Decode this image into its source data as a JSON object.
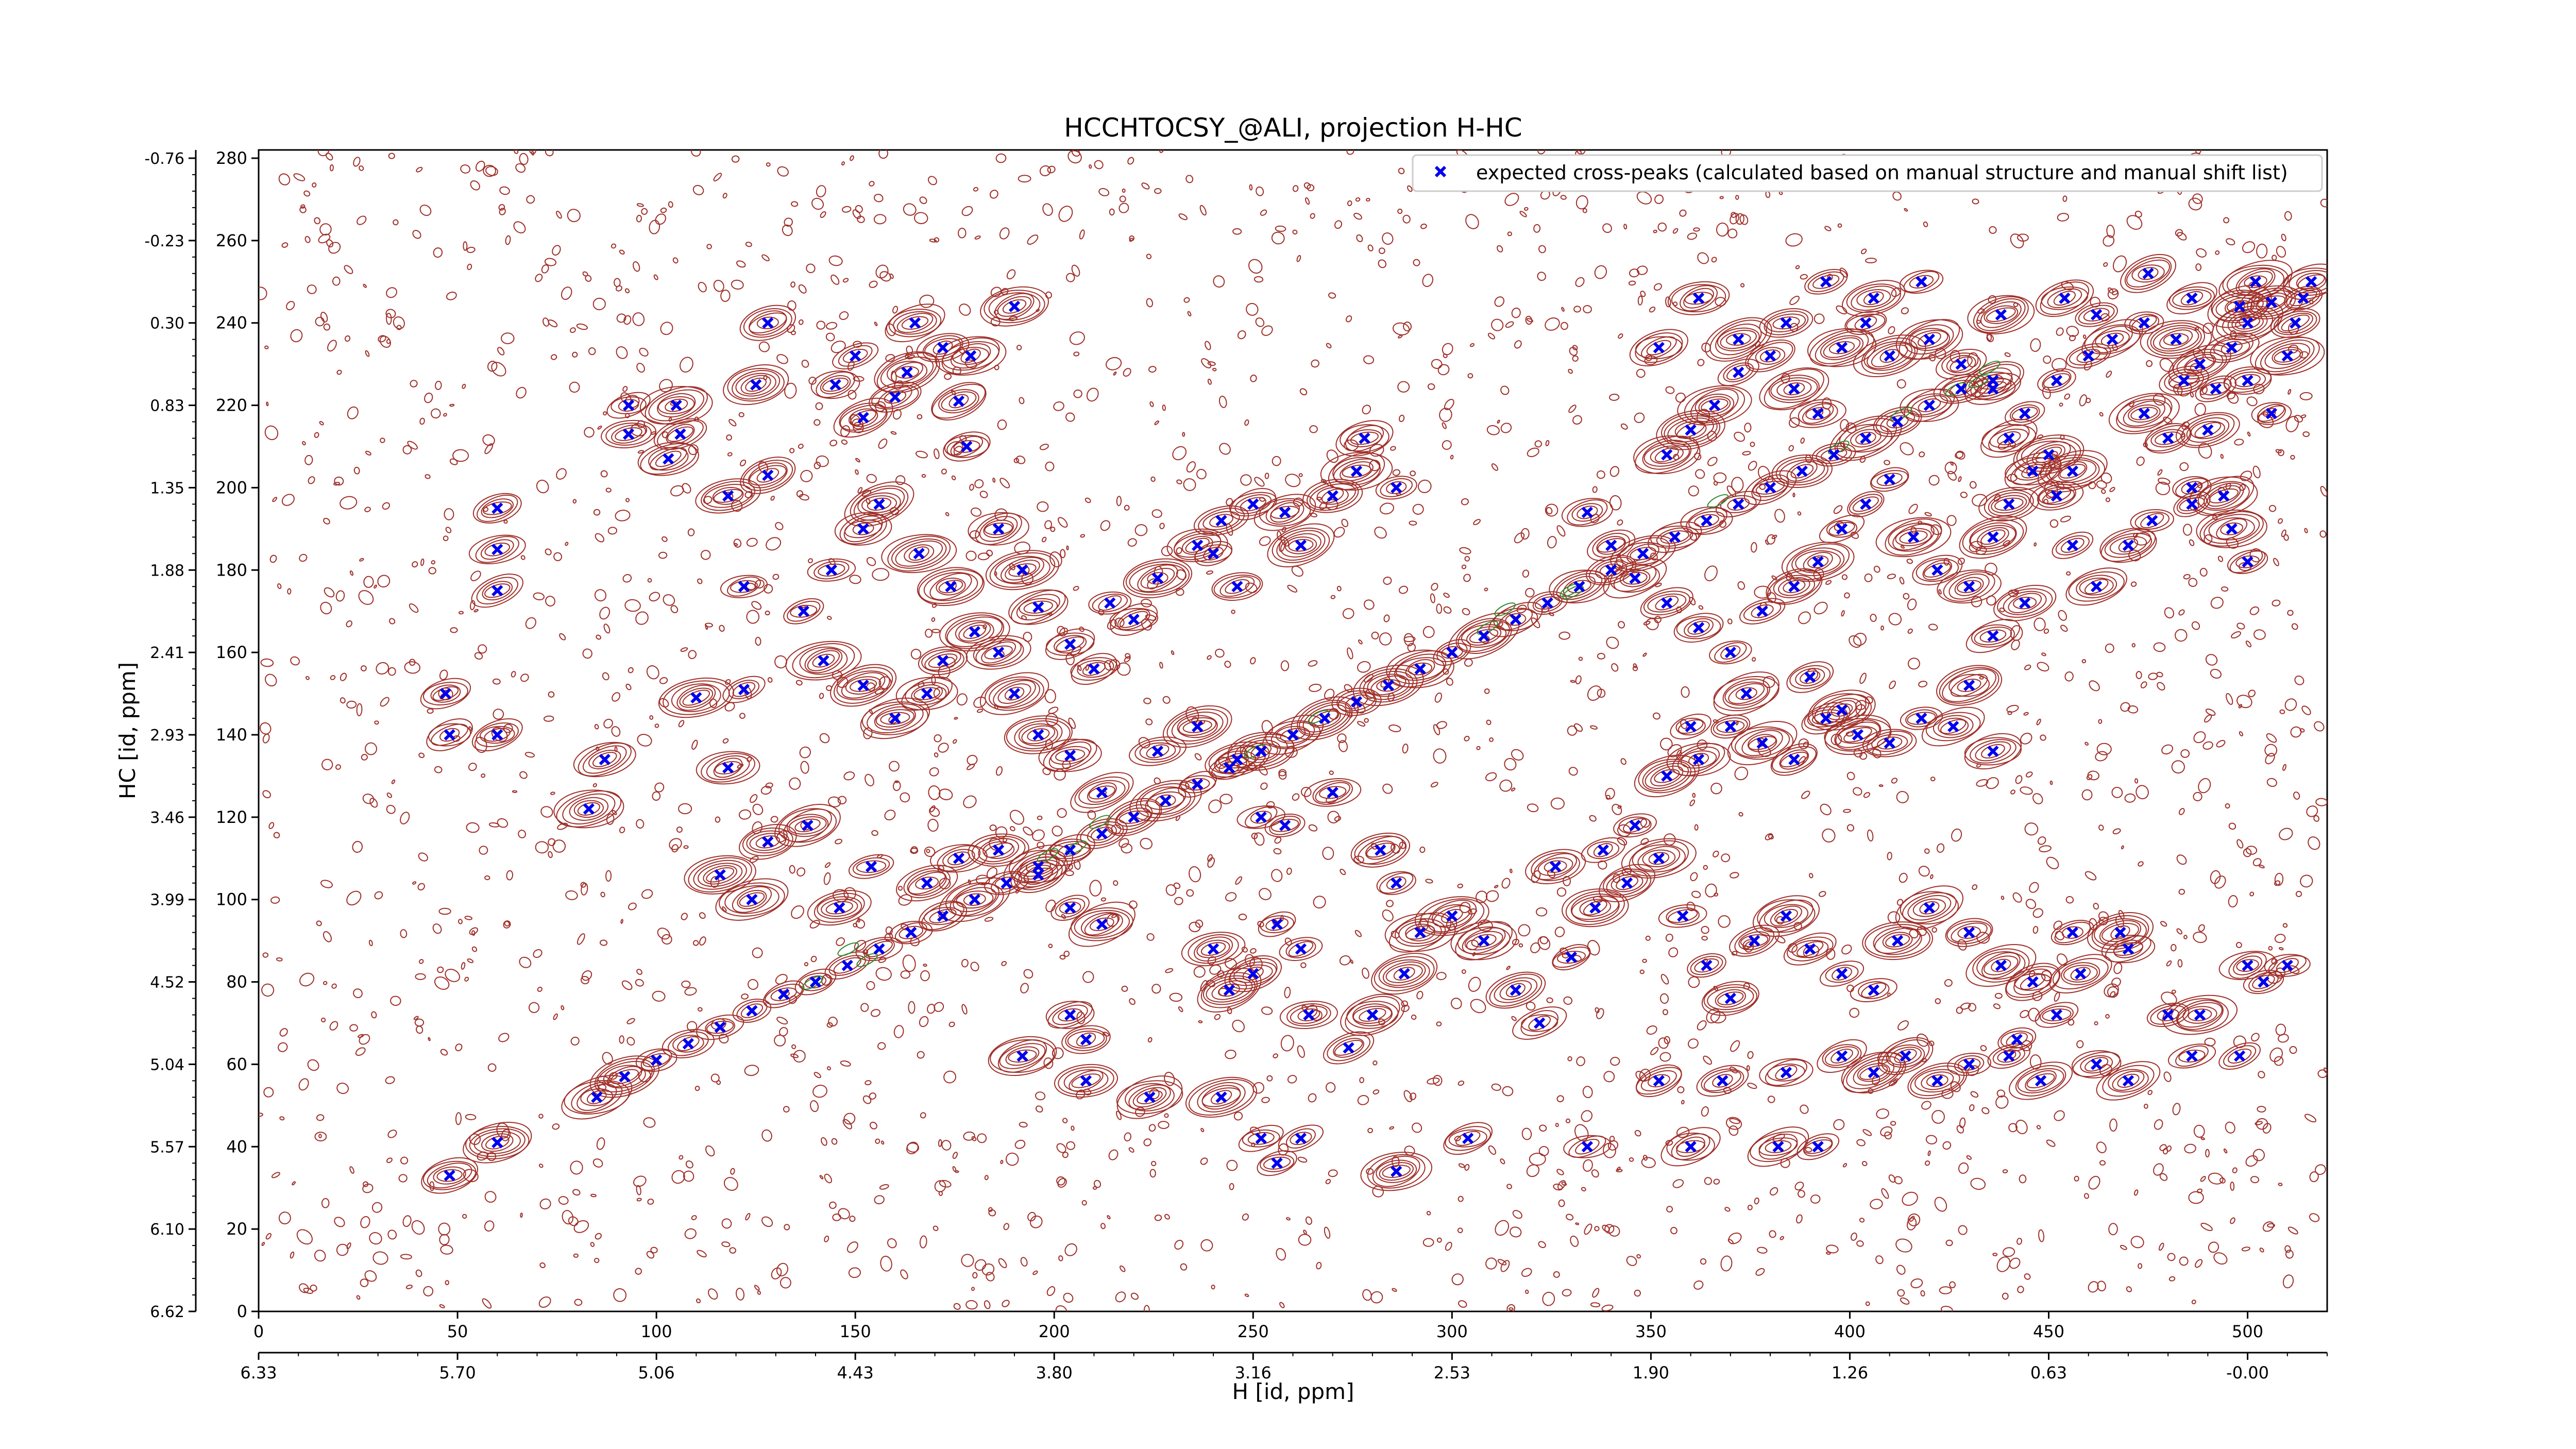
{
  "chart_data": {
    "type": "scatter",
    "title": "HCCHTOCSY_@ALI, projection H-HC",
    "xlabel": "H [id, ppm]",
    "ylabel": "HC [id, ppm]",
    "xlim": [
      0,
      520
    ],
    "ylim": [
      0,
      282
    ],
    "x_ticks": [
      0,
      50,
      100,
      150,
      200,
      250,
      300,
      350,
      400,
      450,
      500
    ],
    "y_ticks": [
      0,
      20,
      40,
      60,
      80,
      100,
      120,
      140,
      160,
      180,
      200,
      220,
      240,
      260,
      280
    ],
    "x_ppm_ticks": [
      "6.33",
      "5.70",
      "5.06",
      "4.43",
      "3.80",
      "3.16",
      "2.53",
      "1.90",
      "1.26",
      "0.63",
      "-0.00"
    ],
    "y_ppm_ticks": [
      "6.62",
      "6.10",
      "5.57",
      "5.04",
      "4.52",
      "3.99",
      "3.46",
      "2.93",
      "2.41",
      "1.88",
      "1.35",
      "0.83",
      "0.30",
      "-0.23",
      "-0.76"
    ],
    "grid": false,
    "legend_position": "top-right",
    "colors": {
      "contour": "#a0302a",
      "negative_contour": "#2e8b2e",
      "marker": "#0000ee"
    },
    "series": [
      {
        "name": "expected cross-peaks (calculated based on manual structure and manual shift list)",
        "marker": "x",
        "points": [
          [
            85,
            52
          ],
          [
            92,
            57
          ],
          [
            100,
            61
          ],
          [
            108,
            65
          ],
          [
            116,
            69
          ],
          [
            124,
            73
          ],
          [
            132,
            77
          ],
          [
            140,
            80
          ],
          [
            148,
            84
          ],
          [
            156,
            88
          ],
          [
            164,
            92
          ],
          [
            172,
            96
          ],
          [
            180,
            100
          ],
          [
            188,
            104
          ],
          [
            196,
            108
          ],
          [
            204,
            112
          ],
          [
            212,
            116
          ],
          [
            220,
            120
          ],
          [
            228,
            124
          ],
          [
            236,
            128
          ],
          [
            244,
            132
          ],
          [
            252,
            136
          ],
          [
            260,
            140
          ],
          [
            268,
            144
          ],
          [
            276,
            148
          ],
          [
            284,
            152
          ],
          [
            292,
            156
          ],
          [
            300,
            160
          ],
          [
            308,
            164
          ],
          [
            316,
            168
          ],
          [
            324,
            172
          ],
          [
            332,
            176
          ],
          [
            340,
            180
          ],
          [
            348,
            184
          ],
          [
            356,
            188
          ],
          [
            364,
            192
          ],
          [
            372,
            196
          ],
          [
            380,
            200
          ],
          [
            388,
            204
          ],
          [
            396,
            208
          ],
          [
            404,
            212
          ],
          [
            412,
            216
          ],
          [
            420,
            220
          ],
          [
            428,
            224
          ],
          [
            436,
            226
          ],
          [
            48,
            33
          ],
          [
            60,
            41
          ],
          [
            60,
            140
          ],
          [
            60,
            175
          ],
          [
            60,
            185
          ],
          [
            60,
            195
          ],
          [
            83,
            122
          ],
          [
            87,
            134
          ],
          [
            48,
            140
          ],
          [
            47,
            150
          ],
          [
            93,
            213
          ],
          [
            93,
            220
          ],
          [
            103,
            207
          ],
          [
            106,
            213
          ],
          [
            105,
            220
          ],
          [
            118,
            198
          ],
          [
            125,
            225
          ],
          [
            128,
            240
          ],
          [
            128,
            203
          ],
          [
            122,
            176
          ],
          [
            122,
            151
          ],
          [
            110,
            149
          ],
          [
            116,
            106
          ],
          [
            118,
            132
          ],
          [
            145,
            225
          ],
          [
            150,
            232
          ],
          [
            152,
            217
          ],
          [
            160,
            222
          ],
          [
            163,
            228
          ],
          [
            165,
            240
          ],
          [
            172,
            234
          ],
          [
            179,
            232
          ],
          [
            176,
            221
          ],
          [
            178,
            210
          ],
          [
            190,
            244
          ],
          [
            186,
            190
          ],
          [
            192,
            180
          ],
          [
            196,
            171
          ],
          [
            180,
            165
          ],
          [
            172,
            158
          ],
          [
            168,
            150
          ],
          [
            160,
            144
          ],
          [
            152,
            152
          ],
          [
            142,
            158
          ],
          [
            137,
            170
          ],
          [
            144,
            180
          ],
          [
            152,
            190
          ],
          [
            156,
            196
          ],
          [
            166,
            184
          ],
          [
            174,
            176
          ],
          [
            186,
            160
          ],
          [
            190,
            150
          ],
          [
            196,
            140
          ],
          [
            204,
            135
          ],
          [
            204,
            162
          ],
          [
            210,
            156
          ],
          [
            214,
            172
          ],
          [
            220,
            168
          ],
          [
            226,
            178
          ],
          [
            236,
            186
          ],
          [
            242,
            192
          ],
          [
            250,
            196
          ],
          [
            258,
            194
          ],
          [
            262,
            186
          ],
          [
            270,
            198
          ],
          [
            276,
            204
          ],
          [
            278,
            212
          ],
          [
            286,
            200
          ],
          [
            240,
            184
          ],
          [
            246,
            176
          ],
          [
            212,
            126
          ],
          [
            226,
            136
          ],
          [
            236,
            142
          ],
          [
            246,
            134
          ],
          [
            252,
            120
          ],
          [
            258,
            118
          ],
          [
            270,
            126
          ],
          [
            282,
            112
          ],
          [
            286,
            104
          ],
          [
            196,
            106
          ],
          [
            204,
            98
          ],
          [
            212,
            94
          ],
          [
            186,
            112
          ],
          [
            176,
            110
          ],
          [
            168,
            104
          ],
          [
            154,
            108
          ],
          [
            146,
            98
          ],
          [
            138,
            118
          ],
          [
            128,
            114
          ],
          [
            124,
            100
          ],
          [
            204,
            72
          ],
          [
            208,
            66
          ],
          [
            192,
            62
          ],
          [
            240,
            88
          ],
          [
            244,
            78
          ],
          [
            250,
            82
          ],
          [
            256,
            94
          ],
          [
            262,
            88
          ],
          [
            264,
            72
          ],
          [
            274,
            64
          ],
          [
            280,
            72
          ],
          [
            288,
            82
          ],
          [
            292,
            92
          ],
          [
            300,
            96
          ],
          [
            308,
            90
          ],
          [
            316,
            78
          ],
          [
            322,
            70
          ],
          [
            330,
            86
          ],
          [
            336,
            98
          ],
          [
            344,
            104
          ],
          [
            352,
            110
          ],
          [
            358,
            96
          ],
          [
            364,
            84
          ],
          [
            370,
            76
          ],
          [
            376,
            90
          ],
          [
            384,
            96
          ],
          [
            390,
            88
          ],
          [
            398,
            82
          ],
          [
            406,
            78
          ],
          [
            412,
            90
          ],
          [
            420,
            98
          ],
          [
            430,
            92
          ],
          [
            438,
            84
          ],
          [
            446,
            80
          ],
          [
            456,
            92
          ],
          [
            468,
            92
          ],
          [
            480,
            72
          ],
          [
            488,
            72
          ],
          [
            500,
            84
          ],
          [
            346,
            118
          ],
          [
            338,
            112
          ],
          [
            326,
            108
          ],
          [
            354,
            130
          ],
          [
            362,
            134
          ],
          [
            370,
            142
          ],
          [
            378,
            138
          ],
          [
            386,
            134
          ],
          [
            394,
            144
          ],
          [
            402,
            140
          ],
          [
            410,
            138
          ],
          [
            418,
            144
          ],
          [
            426,
            142
          ],
          [
            436,
            136
          ],
          [
            390,
            154
          ],
          [
            398,
            146
          ],
          [
            374,
            150
          ],
          [
            360,
            142
          ],
          [
            430,
            152
          ],
          [
            436,
            164
          ],
          [
            444,
            172
          ],
          [
            334,
            194
          ],
          [
            340,
            186
          ],
          [
            346,
            178
          ],
          [
            354,
            172
          ],
          [
            362,
            166
          ],
          [
            370,
            160
          ],
          [
            378,
            170
          ],
          [
            386,
            176
          ],
          [
            392,
            182
          ],
          [
            398,
            190
          ],
          [
            404,
            196
          ],
          [
            410,
            202
          ],
          [
            416,
            188
          ],
          [
            422,
            180
          ],
          [
            430,
            176
          ],
          [
            436,
            188
          ],
          [
            440,
            196
          ],
          [
            446,
            204
          ],
          [
            452,
            198
          ],
          [
            456,
            186
          ],
          [
            462,
            176
          ],
          [
            470,
            186
          ],
          [
            476,
            192
          ],
          [
            486,
            200
          ],
          [
            494,
            198
          ],
          [
            500,
            182
          ],
          [
            354,
            208
          ],
          [
            360,
            214
          ],
          [
            366,
            220
          ],
          [
            372,
            228
          ],
          [
            380,
            232
          ],
          [
            386,
            224
          ],
          [
            392,
            218
          ],
          [
            398,
            234
          ],
          [
            404,
            240
          ],
          [
            410,
            232
          ],
          [
            420,
            236
          ],
          [
            428,
            230
          ],
          [
            436,
            224
          ],
          [
            444,
            218
          ],
          [
            452,
            226
          ],
          [
            460,
            232
          ],
          [
            466,
            236
          ],
          [
            474,
            240
          ],
          [
            482,
            236
          ],
          [
            488,
            230
          ],
          [
            492,
            224
          ],
          [
            500,
            226
          ],
          [
            450,
            208
          ],
          [
            456,
            204
          ],
          [
            440,
            212
          ],
          [
            474,
            218
          ],
          [
            484,
            226
          ],
          [
            496,
            234
          ],
          [
            500,
            240
          ],
          [
            506,
            245
          ],
          [
            490,
            214
          ],
          [
            496,
            190
          ],
          [
            352,
            234
          ],
          [
            362,
            246
          ],
          [
            372,
            236
          ],
          [
            384,
            240
          ],
          [
            394,
            250
          ],
          [
            406,
            246
          ],
          [
            418,
            250
          ],
          [
            438,
            242
          ],
          [
            454,
            246
          ],
          [
            462,
            242
          ],
          [
            475,
            252
          ],
          [
            486,
            246
          ],
          [
            498,
            244
          ],
          [
            502,
            250
          ],
          [
            480,
            212
          ],
          [
            486,
            196
          ],
          [
            506,
            218
          ],
          [
            510,
            232
          ],
          [
            512,
            240
          ],
          [
            514,
            246
          ],
          [
            516,
            250
          ],
          [
            208,
            56
          ],
          [
            224,
            52
          ],
          [
            242,
            52
          ],
          [
            252,
            42
          ],
          [
            256,
            36
          ],
          [
            262,
            42
          ],
          [
            286,
            34
          ],
          [
            304,
            42
          ],
          [
            334,
            40
          ],
          [
            360,
            40
          ],
          [
            382,
            40
          ],
          [
            392,
            40
          ],
          [
            352,
            56
          ],
          [
            368,
            56
          ],
          [
            384,
            58
          ],
          [
            398,
            62
          ],
          [
            406,
            58
          ],
          [
            414,
            62
          ],
          [
            422,
            56
          ],
          [
            430,
            60
          ],
          [
            440,
            62
          ],
          [
            448,
            56
          ],
          [
            462,
            60
          ],
          [
            470,
            56
          ],
          [
            486,
            62
          ],
          [
            498,
            62
          ],
          [
            504,
            80
          ],
          [
            510,
            84
          ],
          [
            470,
            88
          ],
          [
            458,
            82
          ],
          [
            452,
            72
          ],
          [
            442,
            66
          ]
        ]
      }
    ]
  }
}
